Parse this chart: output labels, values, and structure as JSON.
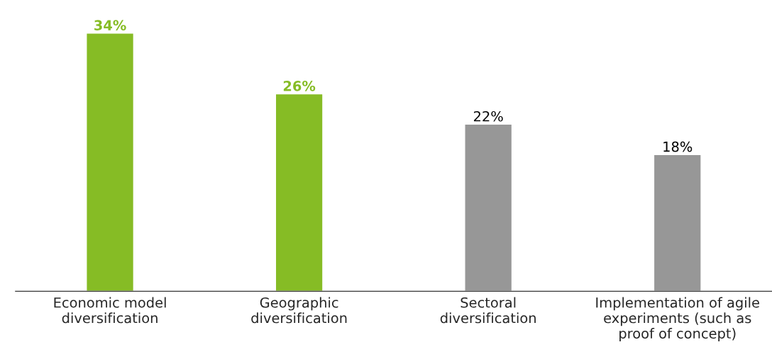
{
  "chart_data": {
    "type": "bar",
    "categories": [
      "Economic model\ndiversification",
      "Geographic\ndiversification",
      "Sectoral\ndiversification",
      "Implementation of agile\nexperiments (such as\nproof of concept)"
    ],
    "values": [
      34,
      26,
      22,
      18
    ],
    "value_labels": [
      "34%",
      "26%",
      "22%",
      "18%"
    ],
    "colors": [
      "#86bc25",
      "#86bc25",
      "#979797",
      "#979797"
    ],
    "grid": false,
    "legend": false
  }
}
